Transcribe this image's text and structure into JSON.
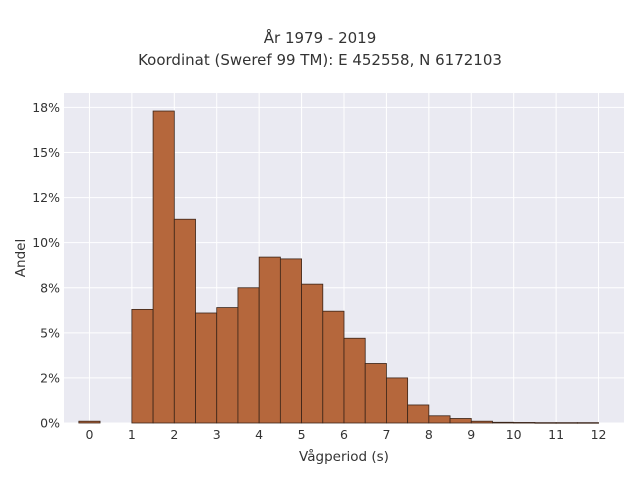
{
  "chart_data": {
    "type": "bar",
    "title": "År 1979 - 2019",
    "subtitle": "Koordinat (Sweref 99 TM): E 452558, N 6172103",
    "xlabel": "Vågperiod (s)",
    "ylabel": "Andel",
    "bin_width": 0.5,
    "xlim": [
      -0.6,
      12.6
    ],
    "ylim": [
      0,
      18.3
    ],
    "x_ticks": [
      0,
      1,
      2,
      3,
      4,
      5,
      6,
      7,
      8,
      9,
      10,
      11,
      12
    ],
    "x_tick_labels": [
      "0",
      "1",
      "2",
      "3",
      "4",
      "5",
      "6",
      "7",
      "8",
      "9",
      "10",
      "11",
      "12"
    ],
    "y_ticks": [
      0,
      2.5,
      5,
      7.5,
      10,
      12.5,
      15,
      17.5
    ],
    "y_tick_labels": [
      "0%",
      "2%",
      "5%",
      "8%",
      "10%",
      "12%",
      "15%",
      "18%"
    ],
    "grid": true,
    "bar_color": "#b5673c",
    "bar_edge_color": "#3a2418",
    "background_color": "#eaeaf2",
    "bins": [
      {
        "start": -0.25,
        "value": 0.1
      },
      {
        "start": 1.0,
        "value": 6.3
      },
      {
        "start": 1.5,
        "value": 17.3
      },
      {
        "start": 2.0,
        "value": 11.3
      },
      {
        "start": 2.5,
        "value": 6.1
      },
      {
        "start": 3.0,
        "value": 6.4
      },
      {
        "start": 3.5,
        "value": 7.5
      },
      {
        "start": 4.0,
        "value": 9.2
      },
      {
        "start": 4.5,
        "value": 9.1
      },
      {
        "start": 5.0,
        "value": 7.7
      },
      {
        "start": 5.5,
        "value": 6.2
      },
      {
        "start": 6.0,
        "value": 4.7
      },
      {
        "start": 6.5,
        "value": 3.3
      },
      {
        "start": 7.0,
        "value": 2.5
      },
      {
        "start": 7.5,
        "value": 1.0
      },
      {
        "start": 8.0,
        "value": 0.4
      },
      {
        "start": 8.5,
        "value": 0.25
      },
      {
        "start": 9.0,
        "value": 0.1
      },
      {
        "start": 9.5,
        "value": 0.04
      },
      {
        "start": 10.0,
        "value": 0.03
      },
      {
        "start": 10.5,
        "value": 0.02
      },
      {
        "start": 11.0,
        "value": 0.02
      },
      {
        "start": 11.5,
        "value": 0.02
      }
    ]
  }
}
